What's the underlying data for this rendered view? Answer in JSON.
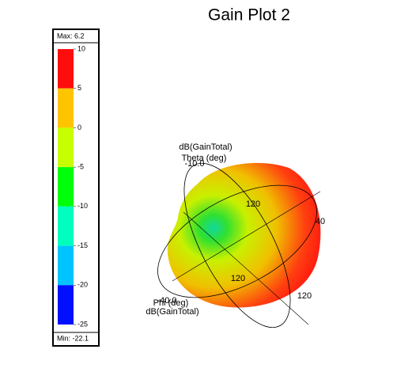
{
  "chart_data": {
    "type": "gain3d",
    "title": "Gain Plot 2",
    "max_label": "Max: 6.2",
    "min_label": "Min: -22.1",
    "colorbar": {
      "ticks": [
        10,
        5,
        0,
        -5,
        -10,
        -15,
        -20,
        -25
      ],
      "lim": [
        -25,
        10
      ],
      "colors": [
        "#ff0d0d",
        "#ffc400",
        "#c8ff00",
        "#00ff0a",
        "#00ffbf",
        "#00c4ff",
        "#0010ff"
      ]
    },
    "annotations": [
      "dB(GainTotal)",
      "Theta (deg)",
      "-10.0",
      "120",
      "40",
      "120",
      "120",
      "-40.0",
      "Phi (deg)",
      "dB(GainTotal)"
    ]
  }
}
